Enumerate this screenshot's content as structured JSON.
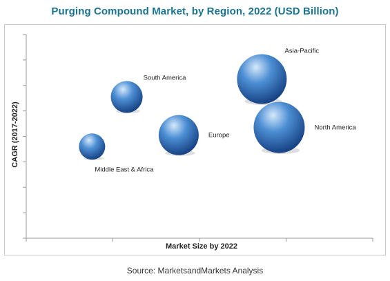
{
  "chart_data": {
    "type": "scatter",
    "subtype": "bubble",
    "title": "Purging Compound Market, by Region, 2022 (USD Billion)",
    "xlabel": "Market Size by 2022",
    "ylabel": "CAGR (2017-2022)",
    "x_ticks_labeled": false,
    "y_ticks_labeled": false,
    "x_tick_count": 5,
    "y_tick_count": 9,
    "xlim": [
      0,
      10
    ],
    "ylim": [
      0,
      8
    ],
    "grid": false,
    "points": [
      {
        "label": "Asia-Pacific",
        "x": 6.8,
        "y": 6.25,
        "size": 36,
        "label_pos": "upper-right"
      },
      {
        "label": "North America",
        "x": 7.3,
        "y": 4.35,
        "size": 37,
        "label_pos": "right"
      },
      {
        "label": "South America",
        "x": 2.9,
        "y": 5.55,
        "size": 23,
        "label_pos": "upper-right"
      },
      {
        "label": "Europe",
        "x": 4.4,
        "y": 4.05,
        "size": 29,
        "label_pos": "right"
      },
      {
        "label": "Middle East & Africa",
        "x": 1.9,
        "y": 3.6,
        "size": 19,
        "label_pos": "below"
      }
    ],
    "colors": {
      "bubble_highlight": "#d6e9fb",
      "bubble_mid": "#4d8fd4",
      "bubble_dark": "#143f80",
      "axis": "#9a9a9a",
      "title": "#1a7391"
    }
  },
  "source_text": "Source:  MarketsandMarkets Analysis"
}
